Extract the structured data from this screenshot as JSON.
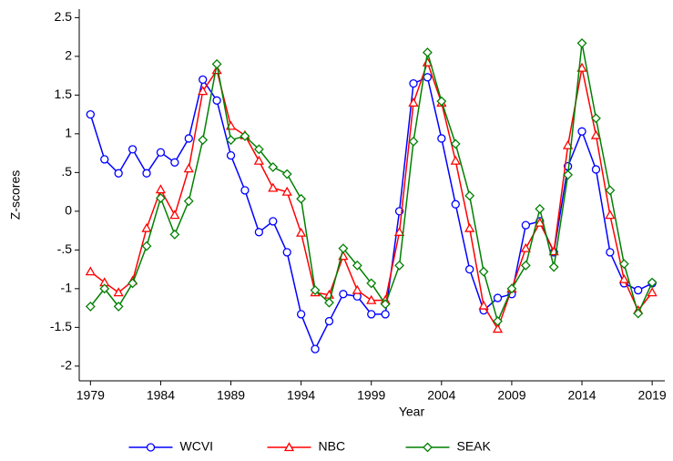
{
  "chart_data": {
    "type": "line",
    "x_label": "Year",
    "y_label": "Z-scores",
    "x": [
      1979,
      1980,
      1981,
      1982,
      1983,
      1984,
      1985,
      1986,
      1987,
      1988,
      1989,
      1990,
      1991,
      1992,
      1993,
      1994,
      1995,
      1996,
      1997,
      1998,
      1999,
      2000,
      2001,
      2002,
      2003,
      2004,
      2005,
      2006,
      2007,
      2008,
      2009,
      2010,
      2011,
      2012,
      2013,
      2014,
      2015,
      2016,
      2017,
      2018,
      2019
    ],
    "xlim": [
      1978.2,
      2019.9
    ],
    "xticks": [
      1979,
      1984,
      1989,
      1994,
      1999,
      2004,
      2009,
      2014,
      2019
    ],
    "ylim": [
      -2.19,
      2.61
    ],
    "yticks": [
      2.5,
      2,
      1.5,
      1,
      {
        "value": 0.5,
        "label": ".5"
      },
      0,
      {
        "value": -0.5,
        "label": "-.5"
      },
      -1,
      -1.5,
      -2
    ],
    "legend": "bottom",
    "series": [
      {
        "name": "WCVI",
        "color": "#0000ff",
        "marker": "circle",
        "values": [
          1.25,
          0.67,
          0.49,
          0.8,
          0.49,
          0.76,
          0.63,
          0.94,
          1.7,
          1.43,
          0.72,
          0.27,
          -0.27,
          -0.13,
          -0.53,
          -1.33,
          -1.78,
          -1.42,
          -1.07,
          -1.1,
          -1.33,
          -1.33,
          0.0,
          1.65,
          1.73,
          0.94,
          0.09,
          -0.75,
          -1.28,
          -1.12,
          -1.07,
          -0.18,
          -0.13,
          -0.53,
          0.58,
          1.03,
          0.54,
          -0.53,
          -0.93,
          -1.02,
          -0.93
        ]
      },
      {
        "name": "NBC",
        "color": "#ff0000",
        "marker": "triangle",
        "values": [
          -0.78,
          -0.92,
          -1.05,
          -0.9,
          -0.22,
          0.28,
          -0.05,
          0.55,
          1.55,
          1.82,
          1.1,
          0.98,
          0.65,
          0.3,
          0.25,
          -0.28,
          -1.05,
          -1.08,
          -0.58,
          -1.02,
          -1.15,
          -1.15,
          -0.27,
          1.4,
          1.92,
          1.4,
          0.65,
          -0.22,
          -1.22,
          -1.52,
          -1.0,
          -0.48,
          -0.15,
          -0.52,
          0.85,
          1.85,
          0.98,
          -0.05,
          -0.88,
          -1.28,
          -1.05
        ]
      },
      {
        "name": "SEAK",
        "color": "#008000",
        "marker": "diamond",
        "values": [
          -1.23,
          -1.0,
          -1.23,
          -0.93,
          -0.45,
          0.17,
          -0.3,
          0.13,
          0.92,
          1.9,
          0.92,
          0.97,
          0.8,
          0.57,
          0.48,
          0.16,
          -1.02,
          -1.18,
          -0.48,
          -0.7,
          -0.93,
          -1.2,
          -0.7,
          0.9,
          2.05,
          1.42,
          0.87,
          0.2,
          -0.78,
          -1.42,
          -1.0,
          -0.7,
          0.03,
          -0.72,
          0.47,
          2.17,
          1.2,
          0.27,
          -0.68,
          -1.32,
          -0.92
        ]
      }
    ]
  }
}
